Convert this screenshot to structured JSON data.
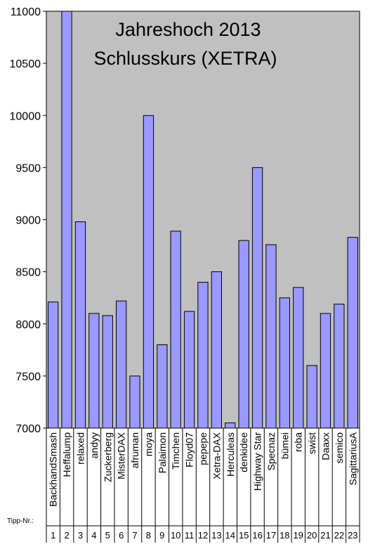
{
  "chart_data": {
    "type": "bar",
    "title_lines": [
      "Jahreshoch 2013",
      "Schlusskurs (XETRA)"
    ],
    "categories": [
      "BackhandSmash",
      "Heffalump",
      "relaxed",
      "andyy",
      "Zuckerberg",
      "MisterDAX",
      "afruman",
      "moya",
      "Palaimon",
      "Timchen",
      "Floyd07",
      "pepepe",
      "Xetra-DAX",
      "Herculeas",
      "denkidee",
      "Highway Star",
      "Specnaz",
      "bümei",
      "roba",
      "swist",
      "Daaxx",
      "semico",
      "SagittariusA"
    ],
    "numbers": [
      "1",
      "2",
      "3",
      "4",
      "5",
      "6",
      "7",
      "8",
      "9",
      "10",
      "11",
      "12",
      "13",
      "14",
      "15",
      "16",
      "17",
      "18",
      "19",
      "20",
      "21",
      "22",
      "23"
    ],
    "values": [
      8210,
      11020,
      8980,
      8100,
      8080,
      8220,
      7500,
      10000,
      7800,
      8890,
      8120,
      8400,
      8500,
      7050,
      8800,
      9500,
      8760,
      8250,
      8350,
      7600,
      8100,
      8190,
      8830
    ],
    "ylim": [
      7000,
      11000
    ],
    "yticks": [
      "7000",
      "7500",
      "8000",
      "8500",
      "9000",
      "9500",
      "10000",
      "10500",
      "11000"
    ],
    "ytick_values": [
      7000,
      7500,
      8000,
      8500,
      9000,
      9500,
      10000,
      10500,
      11000
    ],
    "row_label": "Tipp-Nr.:",
    "grid": false,
    "colors": {
      "plot_bg": "#c0c0c0",
      "bar_fill": "#9999ff",
      "bar_stroke": "#000000",
      "border": "#000000"
    }
  }
}
